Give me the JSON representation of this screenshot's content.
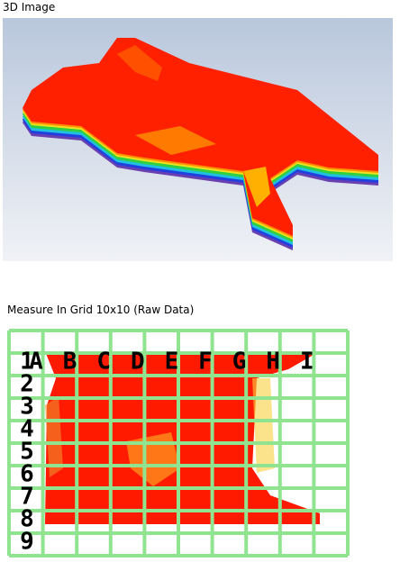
{
  "panel_3d": {
    "title": "3D Image"
  },
  "grid_panel": {
    "title": "Measure In Grid 10x10 (Raw Data)",
    "column_labels": [
      "A",
      "B",
      "C",
      "D",
      "E",
      "F",
      "G",
      "H",
      "I"
    ],
    "row_labels": [
      "1",
      "2",
      "3",
      "4",
      "5",
      "6",
      "7",
      "8",
      "9"
    ]
  }
}
